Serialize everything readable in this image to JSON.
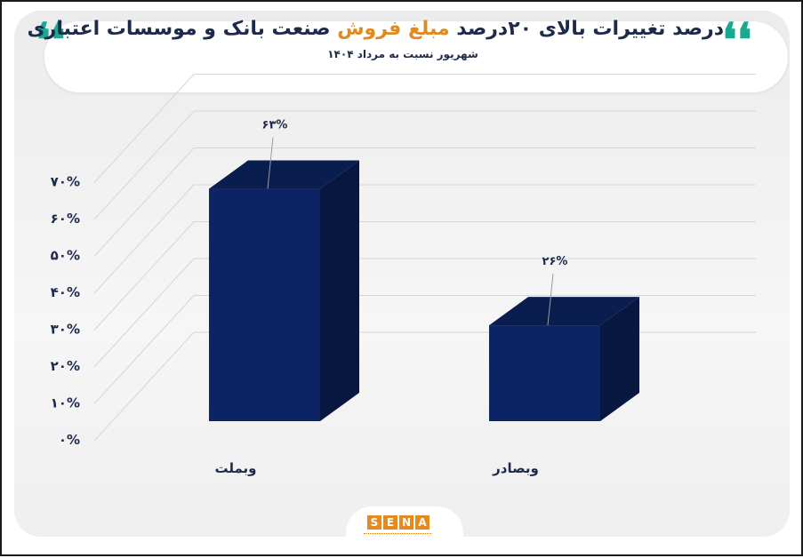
{
  "header": {
    "title_pre": "درصد تغییرات بالای ۲۰درصد",
    "title_highlight": "مبلغ فروش",
    "title_post": "صنعت بانک و موسسات اعتباری",
    "subtitle": "شهریور نسبت به مرداد ۱۴۰۴",
    "quote_glyph": "❛❛"
  },
  "colors": {
    "bar_front": "#0c2463",
    "bar_side": "#07173f",
    "bar_top": "#0a1d4f",
    "highlight": "#e08a1f",
    "quote": "#1aa88e",
    "text": "#1e2a4a"
  },
  "chart_data": {
    "type": "bar",
    "categories": [
      "وبملت",
      "وبصادر"
    ],
    "values": [
      63,
      26
    ],
    "data_labels": [
      "۶۳%",
      "۲۶%"
    ],
    "y_ticks": [
      0,
      10,
      20,
      30,
      40,
      50,
      60,
      70
    ],
    "y_tick_labels": [
      "۰%",
      "۱۰%",
      "۲۰%",
      "۳۰%",
      "۴۰%",
      "۵۰%",
      "۶۰%",
      "۷۰%"
    ],
    "ylim": [
      0,
      70
    ],
    "grid": true,
    "style": "3d-column"
  },
  "logo": {
    "letters": [
      "S",
      "E",
      "N",
      "A"
    ]
  }
}
